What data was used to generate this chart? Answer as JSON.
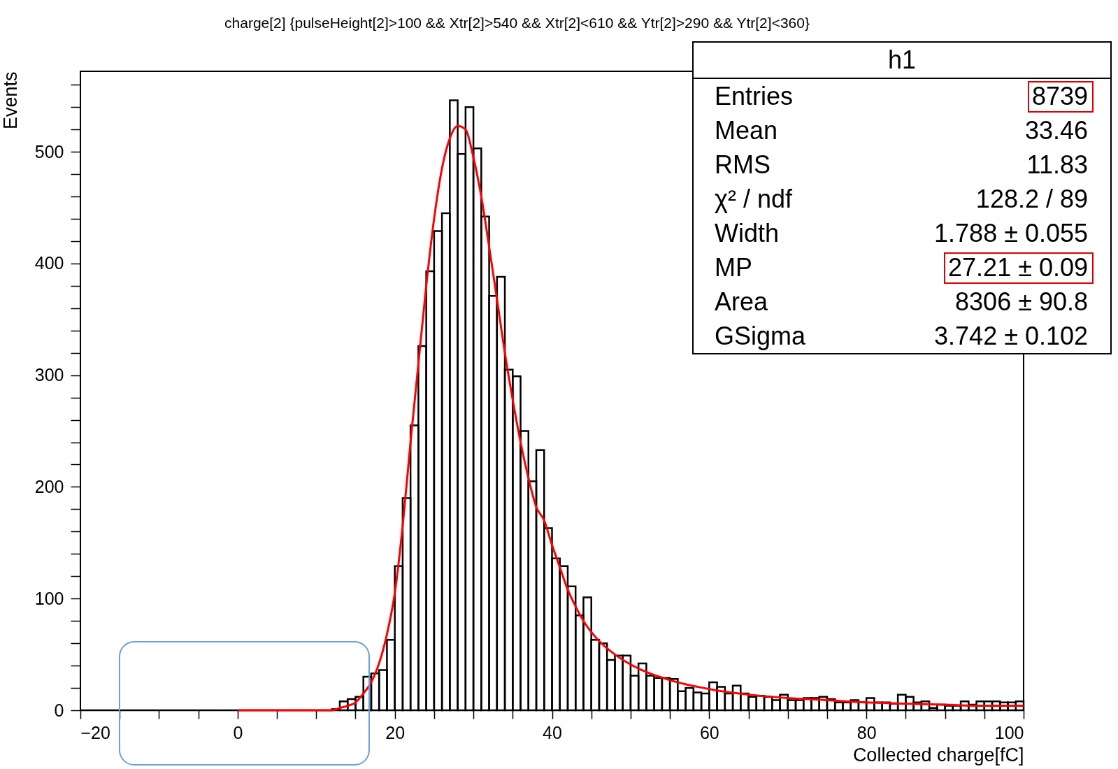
{
  "chart_data": {
    "type": "histogram",
    "title": "charge[2] {pulseHeight[2]>100 && Xtr[2]>540 && Xtr[2]<610 && Ytr[2]>290 && Ytr[2]<360}",
    "xlabel": "Collected charge[fC]",
    "ylabel": "Events",
    "bins": [
      -20,
      -19,
      -18,
      -17,
      -16,
      -15,
      -14,
      -13,
      -12,
      -11,
      -10,
      -9,
      -8,
      -7,
      -6,
      -5,
      -4,
      -3,
      -2,
      -1,
      0,
      1,
      2,
      3,
      4,
      5,
      6,
      7,
      8,
      9,
      10,
      11,
      12,
      13,
      14,
      15,
      16,
      17,
      18,
      19,
      20,
      21,
      22,
      23,
      24,
      25,
      26,
      27,
      28,
      29,
      30,
      31,
      32,
      33,
      34,
      35,
      36,
      37,
      38,
      39,
      40,
      41,
      42,
      43,
      44,
      45,
      46,
      47,
      48,
      49,
      50,
      51,
      52,
      53,
      54,
      55,
      56,
      57,
      58,
      59,
      60,
      61,
      62,
      63,
      64,
      65,
      66,
      67,
      68,
      69,
      70,
      71,
      72,
      73,
      74,
      75,
      76,
      77,
      78,
      79,
      80,
      81,
      82,
      83,
      84,
      85,
      86,
      87,
      88,
      89,
      90,
      91,
      92,
      93,
      94,
      95,
      96,
      97,
      98,
      99,
      100
    ],
    "series": [
      {
        "color": "#000000",
        "values": [
          0,
          0,
          0,
          0,
          0,
          0,
          0,
          0,
          0,
          0,
          0,
          0,
          0,
          0,
          0,
          0,
          0,
          0,
          0,
          0,
          0,
          0,
          0,
          0,
          0,
          0,
          0,
          0,
          0,
          0,
          0,
          0,
          1,
          8,
          10,
          12,
          30,
          33,
          36,
          63,
          129,
          190,
          255,
          326,
          393,
          429,
          445,
          546,
          498,
          540,
          503,
          442,
          371,
          388,
          305,
          299,
          250,
          205,
          233,
          163,
          136,
          129,
          111,
          85,
          101,
          63,
          60,
          45,
          49,
          49,
          31,
          42,
          31,
          29,
          29,
          28,
          17,
          20,
          16,
          15,
          25,
          21,
          15,
          22,
          15,
          12,
          13,
          12,
          9,
          14,
          9,
          9,
          11,
          11,
          12,
          10,
          7,
          7,
          9,
          7,
          11,
          7,
          7,
          6,
          14,
          12,
          7,
          8,
          2,
          5,
          4,
          4,
          8,
          5,
          8,
          8,
          8,
          7,
          7,
          8
        ]
      },
      {
        "type": "line",
        "color": "#ff0000",
        "x": [
          0,
          2,
          4,
          6,
          8,
          10,
          12,
          13,
          14,
          15,
          16,
          17,
          18,
          19,
          20,
          21,
          22,
          23,
          24,
          25,
          26,
          27,
          28,
          29,
          30,
          31,
          32,
          33,
          34,
          35,
          36,
          37,
          38,
          39,
          40,
          41,
          42,
          43,
          44,
          45,
          46,
          48,
          50,
          55,
          60,
          65,
          70,
          75,
          80,
          85,
          90,
          95,
          100
        ],
        "values": [
          0,
          0,
          0,
          0,
          0,
          0,
          0,
          2,
          4,
          7,
          15,
          25,
          42,
          68,
          105,
          165,
          240,
          310,
          380,
          440,
          485,
          512,
          523,
          520,
          495,
          460,
          415,
          368,
          320,
          278,
          240,
          208,
          182,
          170,
          148,
          128,
          108,
          93,
          80,
          70,
          62,
          50,
          41,
          27,
          19,
          14,
          11,
          9,
          7,
          6,
          5,
          4,
          4
        ]
      }
    ],
    "xlim": [
      -20,
      100
    ],
    "xticks": [
      {
        "value": -20,
        "label": "−20"
      },
      {
        "value": -15,
        "label": null
      },
      {
        "value": -10,
        "label": null
      },
      {
        "value": -5,
        "label": null
      },
      0,
      {
        "value": 5,
        "label": null
      },
      {
        "value": 10,
        "label": null
      },
      {
        "value": 15,
        "label": null
      },
      20,
      {
        "value": 25,
        "label": null
      },
      {
        "value": 30,
        "label": null
      },
      {
        "value": 35,
        "label": null
      },
      40,
      {
        "value": 45,
        "label": null
      },
      {
        "value": 50,
        "label": null
      },
      {
        "value": 55,
        "label": null
      },
      60,
      {
        "value": 65,
        "label": null
      },
      {
        "value": 70,
        "label": null
      },
      {
        "value": 75,
        "label": null
      },
      80,
      {
        "value": 85,
        "label": null
      },
      {
        "value": 90,
        "label": null
      },
      {
        "value": 95,
        "label": null
      },
      100
    ],
    "ylim": [
      0,
      572
    ],
    "yticks": [
      0,
      {
        "value": 20,
        "label": null
      },
      {
        "value": 40,
        "label": null
      },
      {
        "value": 60,
        "label": null
      },
      {
        "value": 80,
        "label": null
      },
      100,
      {
        "value": 120,
        "label": null
      },
      {
        "value": 140,
        "label": null
      },
      {
        "value": 160,
        "label": null
      },
      {
        "value": 180,
        "label": null
      },
      200,
      {
        "value": 220,
        "label": null
      },
      {
        "value": 240,
        "label": null
      },
      {
        "value": 260,
        "label": null
      },
      {
        "value": 280,
        "label": null
      },
      300,
      {
        "value": 320,
        "label": null
      },
      {
        "value": 340,
        "label": null
      },
      {
        "value": 360,
        "label": null
      },
      {
        "value": 380,
        "label": null
      },
      400,
      {
        "value": 420,
        "label": null
      },
      {
        "value": 440,
        "label": null
      },
      {
        "value": 460,
        "label": null
      },
      {
        "value": 480,
        "label": null
      },
      500,
      {
        "value": 520,
        "label": null
      },
      {
        "value": 540,
        "label": null
      },
      {
        "value": 560,
        "label": null
      }
    ],
    "grid": false,
    "annotations": [
      "h1",
      "Entries",
      "8739",
      "Mean",
      "33.46",
      "RMS",
      "11.83",
      "χ² / ndf",
      "128.2 / 89",
      "Width",
      "1.788 ± 0.055",
      "MP",
      "27.21 ± 0.09",
      "Area",
      "8306 ± 90.8",
      "GSigma",
      "3.742 ± 0.102"
    ]
  }
}
